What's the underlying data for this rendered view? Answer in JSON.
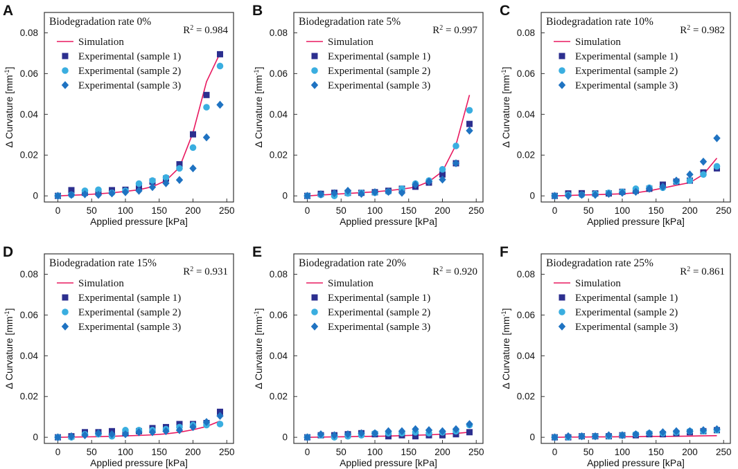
{
  "colors": {
    "simulation": "#e8185f",
    "sample1": "#2c2f8f",
    "sample2": "#3aaee0",
    "sample3": "#1f73c2",
    "axis": "#333333"
  },
  "chart_data": [
    {
      "panel": "A",
      "type": "line",
      "title": "Biodegradation rate 0%",
      "r2_label": "R",
      "r2_sup": "2",
      "r2_value": " = 0.984",
      "xlabel": "Applied pressure [kPa]",
      "ylabel_main": "Δ Curvature [mm",
      "ylabel_sup": "-1",
      "ylabel_end": "]",
      "xlim": [
        -20,
        260
      ],
      "ylim": [
        -0.003,
        0.09
      ],
      "xticks": [
        0,
        50,
        100,
        150,
        200,
        250
      ],
      "yticks": [
        0,
        0.02,
        0.04,
        0.06,
        0.08
      ],
      "ytick_labels": [
        "0",
        "0.02",
        "0.04",
        "0.06",
        "0.08"
      ],
      "legend": [
        "Simulation",
        "Experimental (sample 1)",
        "Experimental (sample 2)",
        "Experimental (sample 3)"
      ],
      "x": [
        0,
        20,
        40,
        60,
        80,
        100,
        120,
        140,
        160,
        180,
        200,
        220,
        240
      ],
      "series": [
        {
          "name": "Simulation",
          "values": [
            0,
            0.0003,
            0.0006,
            0.001,
            0.0015,
            0.0022,
            0.003,
            0.0045,
            0.0075,
            0.014,
            0.031,
            0.056,
            0.07
          ]
        },
        {
          "name": "Experimental (sample 1)",
          "values": [
            0,
            0.0028,
            0.0015,
            0.002,
            0.0028,
            0.003,
            0.0045,
            0.007,
            0.0085,
            0.0155,
            0.0302,
            0.0495,
            0.0695
          ]
        },
        {
          "name": "Experimental (sample 2)",
          "values": [
            0,
            0.0005,
            0.0025,
            0.003,
            0.0015,
            0.0025,
            0.006,
            0.0075,
            0.009,
            0.0135,
            0.0237,
            0.0435,
            0.0637
          ]
        },
        {
          "name": "Experimental (sample 3)",
          "values": [
            0,
            0.0005,
            0.0008,
            0.0005,
            0.0012,
            0.0018,
            0.0025,
            0.0043,
            0.0062,
            0.0078,
            0.0135,
            0.0287,
            0.0447
          ]
        }
      ]
    },
    {
      "panel": "B",
      "type": "line",
      "title": "Biodegradation rate 5%",
      "r2_label": "R",
      "r2_sup": "2",
      "r2_value": " = 0.997",
      "xlabel": "Applied pressure [kPa]",
      "ylabel_main": "Δ Curvature [mm",
      "ylabel_sup": "-1",
      "ylabel_end": "]",
      "xlim": [
        -20,
        260
      ],
      "ylim": [
        -0.003,
        0.09
      ],
      "xticks": [
        0,
        50,
        100,
        150,
        200,
        250
      ],
      "yticks": [
        0,
        0.02,
        0.04,
        0.06,
        0.08
      ],
      "ytick_labels": [
        "0",
        "0.02",
        "0.04",
        "0.06",
        "0.08"
      ],
      "legend": [
        "Simulation",
        "Experimental (sample 1)",
        "Experimental (sample 2)",
        "Experimental (sample 3)"
      ],
      "x": [
        0,
        20,
        40,
        60,
        80,
        100,
        120,
        140,
        160,
        180,
        200,
        220,
        240
      ],
      "series": [
        {
          "name": "Simulation",
          "values": [
            0,
            0.0004,
            0.0008,
            0.0012,
            0.0016,
            0.002,
            0.0026,
            0.0033,
            0.0043,
            0.007,
            0.012,
            0.025,
            0.0495
          ]
        },
        {
          "name": "Experimental (sample 1)",
          "values": [
            0,
            0.001,
            0.0015,
            0.0015,
            0.0015,
            0.0018,
            0.0025,
            0.0035,
            0.0045,
            0.0065,
            0.0105,
            0.016,
            0.0353
          ]
        },
        {
          "name": "Experimental (sample 2)",
          "values": [
            0,
            0.0005,
            0,
            0.0012,
            0.0015,
            0.0015,
            0.002,
            0.0035,
            0.006,
            0.0075,
            0.013,
            0.0245,
            0.042
          ]
        },
        {
          "name": "Experimental (sample 3)",
          "values": [
            0,
            0.0008,
            0.0013,
            0.0025,
            0.001,
            0.0018,
            0.002,
            0.0015,
            0.0055,
            0.007,
            0.008,
            0.016,
            0.032
          ]
        }
      ]
    },
    {
      "panel": "C",
      "type": "line",
      "title": "Biodegradation rate 10%",
      "r2_label": "R",
      "r2_sup": "2",
      "r2_value": " = 0.982",
      "xlabel": "Applied pressure [kPa]",
      "ylabel_main": "Δ Curvature [mm",
      "ylabel_sup": "-1",
      "ylabel_end": "]",
      "xlim": [
        -20,
        260
      ],
      "ylim": [
        -0.003,
        0.09
      ],
      "xticks": [
        0,
        50,
        100,
        150,
        200,
        250
      ],
      "yticks": [
        0,
        0.02,
        0.04,
        0.06,
        0.08
      ],
      "ytick_labels": [
        "0",
        "0.02",
        "0.04",
        "0.06",
        "0.08"
      ],
      "legend": [
        "Simulation",
        "Experimental (sample 1)",
        "Experimental (sample 2)",
        "Experimental (sample 3)"
      ],
      "x": [
        0,
        20,
        40,
        60,
        80,
        100,
        120,
        140,
        160,
        180,
        200,
        220,
        240
      ],
      "series": [
        {
          "name": "Simulation",
          "values": [
            0,
            0.0002,
            0.0004,
            0.0006,
            0.0008,
            0.001,
            0.0015,
            0.0025,
            0.0038,
            0.0052,
            0.0065,
            0.0105,
            0.0185
          ]
        },
        {
          "name": "Experimental (sample 1)",
          "values": [
            0,
            0.0012,
            0.0013,
            0.0012,
            0.0012,
            0.002,
            0.0025,
            0.0035,
            0.0055,
            0.007,
            0.0075,
            0.0115,
            0.0135
          ]
        },
        {
          "name": "Experimental (sample 2)",
          "values": [
            0,
            0.0005,
            0.0005,
            0.001,
            0.0015,
            0.002,
            0.0035,
            0.004,
            0.004,
            0.007,
            0.0075,
            0.0105,
            0.0145
          ]
        },
        {
          "name": "Experimental (sample 3)",
          "values": [
            0,
            0,
            0.0005,
            0.0005,
            0.001,
            0.0015,
            0.002,
            0.0035,
            0.0045,
            0.0075,
            0.0105,
            0.0168,
            0.0283
          ]
        }
      ]
    },
    {
      "panel": "D",
      "type": "line",
      "title": "Biodegradation rate 15%",
      "r2_label": "R",
      "r2_sup": "2",
      "r2_value": " = 0.931",
      "xlabel": "Applied pressure [kPa]",
      "ylabel_main": "Δ Curvature [mm",
      "ylabel_sup": "-1",
      "ylabel_end": "]",
      "xlim": [
        -20,
        260
      ],
      "ylim": [
        -0.003,
        0.09
      ],
      "xticks": [
        0,
        50,
        100,
        150,
        200,
        250
      ],
      "yticks": [
        0,
        0.02,
        0.04,
        0.06,
        0.08
      ],
      "ytick_labels": [
        "0",
        "0.02",
        "0.04",
        "0.06",
        "0.08"
      ],
      "legend": [
        "Simulation",
        "Experimental (sample 1)",
        "Experimental (sample 2)",
        "Experimental (sample 3)"
      ],
      "x": [
        0,
        20,
        40,
        60,
        80,
        100,
        120,
        140,
        160,
        180,
        200,
        220,
        240
      ],
      "series": [
        {
          "name": "Simulation",
          "values": [
            0,
            0.0001,
            0.0002,
            0.0003,
            0.0005,
            0.0007,
            0.0009,
            0.0012,
            0.0017,
            0.0025,
            0.0037,
            0.0053,
            0.008
          ]
        },
        {
          "name": "Experimental (sample 1)",
          "values": [
            0,
            0.0005,
            0.0025,
            0.0025,
            0.003,
            0.002,
            0.003,
            0.0045,
            0.005,
            0.0065,
            0.0065,
            0.007,
            0.0125
          ]
        },
        {
          "name": "Experimental (sample 2)",
          "values": [
            0,
            0,
            0.0015,
            0.0015,
            0.0005,
            0.0035,
            0.0035,
            0.0035,
            0.004,
            0.005,
            0.006,
            0.006,
            0.0065
          ]
        },
        {
          "name": "Experimental (sample 3)",
          "values": [
            0,
            0.0005,
            0.001,
            0.002,
            0.0015,
            0.0015,
            0.0025,
            0.0025,
            0.003,
            0.0035,
            0.005,
            0.0075,
            0.0105
          ]
        }
      ]
    },
    {
      "panel": "E",
      "type": "line",
      "title": "Biodegradation rate 20%",
      "r2_label": "R",
      "r2_sup": "2",
      "r2_value": " = 0.920",
      "xlabel": "Applied pressure [kPa]",
      "ylabel_main": "Δ Curvature [mm",
      "ylabel_sup": "-1",
      "ylabel_end": "]",
      "xlim": [
        -20,
        260
      ],
      "ylim": [
        -0.003,
        0.09
      ],
      "xticks": [
        0,
        50,
        100,
        150,
        200,
        250
      ],
      "yticks": [
        0,
        0.02,
        0.04,
        0.06,
        0.08
      ],
      "ytick_labels": [
        "0",
        "0.02",
        "0.04",
        "0.06",
        "0.08"
      ],
      "legend": [
        "Simulation",
        "Experimental (sample 1)",
        "Experimental (sample 2)",
        "Experimental (sample 3)"
      ],
      "x": [
        0,
        20,
        40,
        60,
        80,
        100,
        120,
        140,
        160,
        180,
        200,
        220,
        240
      ],
      "series": [
        {
          "name": "Simulation",
          "values": [
            0,
            0.0001,
            0.0002,
            0.0003,
            0.0004,
            0.0005,
            0.0006,
            0.0008,
            0.001,
            0.0012,
            0.0015,
            0.0019,
            0.0025
          ]
        },
        {
          "name": "Experimental (sample 1)",
          "values": [
            0,
            0.001,
            0.001,
            0.0015,
            0.002,
            0.0015,
            0.0005,
            0.001,
            0.0005,
            0.001,
            0.001,
            0.0015,
            0.0025
          ]
        },
        {
          "name": "Experimental (sample 2)",
          "values": [
            0,
            0.001,
            0,
            0.0005,
            0.001,
            0.002,
            0.002,
            0.002,
            0.0025,
            0.002,
            0.0025,
            0.003,
            0.006
          ]
        },
        {
          "name": "Experimental (sample 3)",
          "values": [
            0,
            0.0015,
            0.001,
            0.0015,
            0.002,
            0.002,
            0.003,
            0.003,
            0.004,
            0.0035,
            0.003,
            0.004,
            0.0065
          ]
        }
      ]
    },
    {
      "panel": "F",
      "type": "line",
      "title": "Biodegradation rate 25%",
      "r2_label": "R",
      "r2_sup": "2",
      "r2_value": " = 0.861",
      "xlabel": "Applied pressure [kPa]",
      "ylabel_main": "Δ Curvature [mm",
      "ylabel_sup": "-1",
      "ylabel_end": "]",
      "xlim": [
        -20,
        260
      ],
      "ylim": [
        -0.003,
        0.09
      ],
      "xticks": [
        0,
        50,
        100,
        150,
        200,
        250
      ],
      "yticks": [
        0,
        0.02,
        0.04,
        0.06,
        0.08
      ],
      "ytick_labels": [
        "0",
        "0.02",
        "0.04",
        "0.06",
        "0.08"
      ],
      "legend": [
        "Simulation",
        "Experimental (sample 1)",
        "Experimental (sample 2)",
        "Experimental (sample 3)"
      ],
      "x": [
        0,
        20,
        40,
        60,
        80,
        100,
        120,
        140,
        160,
        180,
        200,
        220,
        240
      ],
      "series": [
        {
          "name": "Simulation",
          "values": [
            0,
            0.0001,
            0.0001,
            0.0002,
            0.0002,
            0.0003,
            0.0003,
            0.0004,
            0.0004,
            0.0005,
            0.0006,
            0.0007,
            0.0008
          ]
        },
        {
          "name": "Experimental (sample 1)",
          "values": [
            0,
            0,
            0.0005,
            0.0005,
            0.0005,
            0.001,
            0.001,
            0.0015,
            0.0015,
            0.002,
            0.0025,
            0.003,
            0.0035
          ]
        },
        {
          "name": "Experimental (sample 2)",
          "values": [
            0,
            0,
            0.0005,
            0.0005,
            0.0005,
            0.001,
            0.0015,
            0.002,
            0.002,
            0.0025,
            0.003,
            0.003,
            0.0035
          ]
        },
        {
          "name": "Experimental (sample 3)",
          "values": [
            0,
            0.0005,
            0.0005,
            0.0005,
            0.001,
            0.001,
            0.0015,
            0.002,
            0.0025,
            0.003,
            0.003,
            0.0035,
            0.004
          ]
        }
      ]
    }
  ]
}
